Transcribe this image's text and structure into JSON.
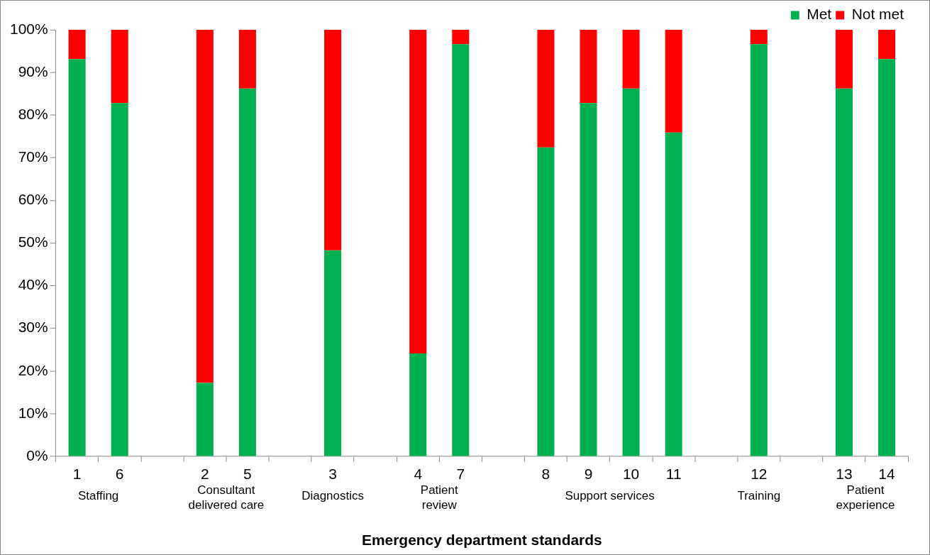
{
  "chart_data": {
    "type": "bar",
    "stacked": true,
    "xlabel": "Emergency department standards",
    "categories": [
      "1",
      "6",
      null,
      "2",
      "5",
      null,
      "3",
      null,
      "4",
      "7",
      null,
      "8",
      "9",
      "10",
      "11",
      null,
      "12",
      null,
      "13",
      "14"
    ],
    "series": [
      {
        "name": "Met",
        "color": "#00b050",
        "values": [
          93.1,
          82.8,
          null,
          17.2,
          86.2,
          null,
          48.3,
          null,
          24.1,
          96.6,
          null,
          72.4,
          82.8,
          86.2,
          75.9,
          null,
          96.6,
          null,
          86.2,
          93.1
        ]
      },
      {
        "name": "Not met",
        "color": "#ff0000",
        "values": [
          6.9,
          17.2,
          null,
          82.8,
          13.8,
          null,
          51.7,
          null,
          75.9,
          3.4,
          null,
          27.6,
          17.2,
          13.8,
          24.1,
          null,
          3.4,
          null,
          13.8,
          6.9
        ]
      }
    ],
    "annotations": [
      "Staffing",
      "Consultant delivered care",
      "Diagnostics",
      "Patient review",
      "Support services",
      "Training",
      "Patient experience"
    ],
    "ylim": [
      0,
      100
    ],
    "yticks": [
      {
        "value": 0,
        "label": "0%"
      },
      {
        "value": 10,
        "label": "10%"
      },
      {
        "value": 20,
        "label": "20%"
      },
      {
        "value": 30,
        "label": "30%"
      },
      {
        "value": 40,
        "label": "40%"
      },
      {
        "value": 50,
        "label": "50%"
      },
      {
        "value": 60,
        "label": "60%"
      },
      {
        "value": 70,
        "label": "70%"
      },
      {
        "value": 80,
        "label": "80%"
      },
      {
        "value": 90,
        "label": "90%"
      },
      {
        "value": 100,
        "label": "100%"
      }
    ],
    "grid": false,
    "legend": "top right"
  }
}
